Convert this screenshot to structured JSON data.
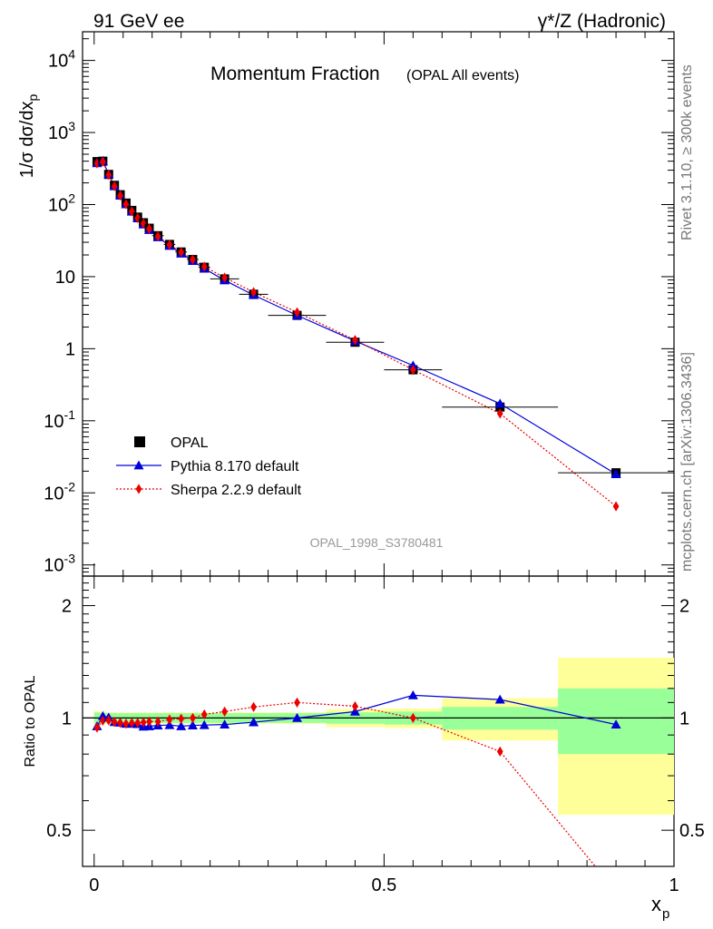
{
  "header": {
    "left": "91 GeV ee",
    "right": "γ*/Z (Hadronic)"
  },
  "side_labels": {
    "rivet": "Rivet 3.1.10, ≥ 300k events",
    "mcplots": "mcplots.cern.ch [arXiv:1306.3436]"
  },
  "chart_data": {
    "type": "scatter",
    "title": "Momentum Fraction",
    "subtitle": "(OPAL All events)",
    "analysis_id": "OPAL_1998_S3780481",
    "xlabel": "x",
    "xlabel_sub": "p",
    "ylabel": "1/σ dσ/dx",
    "ylabel_sub": "p",
    "ratio_ylabel": "Ratio to OPAL",
    "xlim": [
      -0.02,
      1.0
    ],
    "ylim": [
      0.0007,
      25000
    ],
    "yscale": "log",
    "ratio_ylim": [
      0.4,
      2.4
    ],
    "ratio_yscale": "log",
    "x_ticks": [
      "0",
      "0.5",
      "1"
    ],
    "y_ticks": [
      "10^-3",
      "10^-2",
      "10^-1",
      "1",
      "10",
      "10^2",
      "10^3",
      "10^4"
    ],
    "ratio_ticks": [
      "0.5",
      "1",
      "2"
    ],
    "legend_position": "lower-left",
    "x": [
      0.005,
      0.015,
      0.025,
      0.035,
      0.045,
      0.055,
      0.065,
      0.075,
      0.085,
      0.095,
      0.11,
      0.13,
      0.15,
      0.17,
      0.19,
      0.225,
      0.275,
      0.35,
      0.45,
      0.55,
      0.7,
      0.9
    ],
    "x_err": [
      0.005,
      0.005,
      0.005,
      0.005,
      0.005,
      0.005,
      0.005,
      0.005,
      0.005,
      0.005,
      0.01,
      0.01,
      0.01,
      0.01,
      0.01,
      0.025,
      0.025,
      0.05,
      0.05,
      0.05,
      0.1,
      0.1
    ],
    "series": [
      {
        "name": "OPAL",
        "color": "#000000",
        "marker": "square",
        "values": [
          395,
          400,
          262,
          185,
          137,
          105,
          83,
          67,
          56,
          47,
          37,
          28,
          22,
          17.3,
          13.5,
          9.3,
          5.7,
          2.9,
          1.23,
          0.51,
          0.155,
          0.019
        ]
      },
      {
        "name": "Pythia 8.170 default",
        "color": "#0000dd",
        "marker": "triangle",
        "line": "solid",
        "values": [
          375,
          405,
          263,
          180,
          133,
          101,
          80,
          64.5,
          53,
          44.5,
          35.3,
          26.8,
          20.9,
          16.5,
          12.9,
          8.9,
          5.55,
          2.9,
          1.28,
          0.585,
          0.173,
          0.0182
        ]
      },
      {
        "name": "Sherpa 2.2.9 default",
        "color": "#ee0000",
        "marker": "diamond",
        "line": "dotted",
        "values": [
          372,
          393,
          258,
          180,
          133,
          101,
          80.5,
          65,
          54.5,
          46,
          36.2,
          27.7,
          21.9,
          17.3,
          13.8,
          9.7,
          6.1,
          3.2,
          1.32,
          0.51,
          0.126,
          0.0065
        ]
      }
    ],
    "ratio": {
      "band_inner": [
        0.035,
        0.03,
        0.03,
        0.03,
        0.03,
        0.03,
        0.03,
        0.03,
        0.03,
        0.03,
        0.03,
        0.03,
        0.03,
        0.03,
        0.03,
        0.03,
        0.03,
        0.03,
        0.035,
        0.04,
        0.07,
        0.2
      ],
      "band_outer": [
        0.045,
        0.04,
        0.035,
        0.035,
        0.035,
        0.035,
        0.035,
        0.035,
        0.035,
        0.035,
        0.035,
        0.035,
        0.035,
        0.035,
        0.035,
        0.035,
        0.035,
        0.035,
        0.055,
        0.06,
        0.13,
        0.45
      ],
      "pythia": [
        0.95,
        1.012,
        1.003,
        0.975,
        0.972,
        0.965,
        0.965,
        0.963,
        0.948,
        0.95,
        0.955,
        0.957,
        0.95,
        0.955,
        0.957,
        0.96,
        0.974,
        1.0,
        1.04,
        1.15,
        1.12,
        0.96
      ],
      "sherpa": [
        0.942,
        0.983,
        0.985,
        0.975,
        0.97,
        0.965,
        0.97,
        0.97,
        0.973,
        0.978,
        0.978,
        0.99,
        0.995,
        1.0,
        1.022,
        1.04,
        1.07,
        1.1,
        1.075,
        1.0,
        0.813,
        0.343
      ]
    }
  }
}
